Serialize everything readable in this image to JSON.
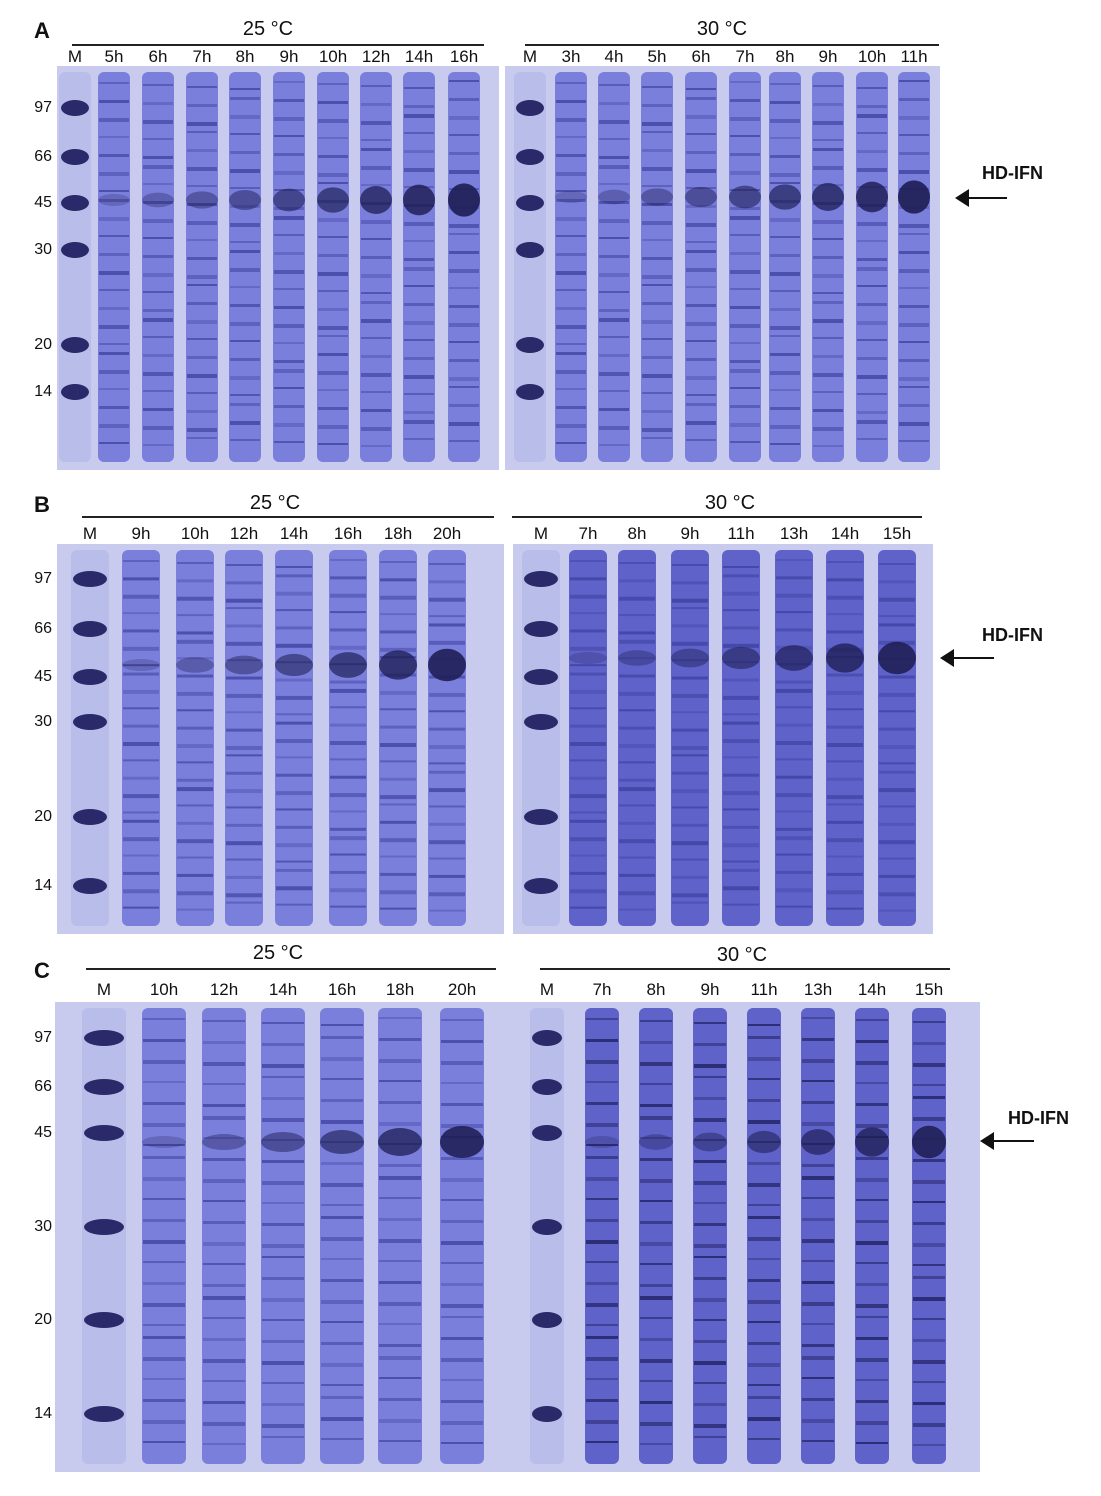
{
  "figure": {
    "label_HD": "HD-IFN",
    "panels": [
      {
        "letter": "A",
        "marker_weights": [
          "97",
          "66",
          "45",
          "30",
          "20",
          "14"
        ],
        "left": {
          "temp": "25 °C",
          "lanes": [
            "M",
            "5h",
            "6h",
            "7h",
            "8h",
            "9h",
            "10h",
            "12h",
            "14h",
            "16h"
          ]
        },
        "right": {
          "temp": "30 °C",
          "lanes": [
            "M",
            "3h",
            "4h",
            "5h",
            "6h",
            "7h",
            "8h",
            "9h",
            "10h",
            "11h"
          ]
        }
      },
      {
        "letter": "B",
        "marker_weights": [
          "97",
          "66",
          "45",
          "30",
          "20",
          "14"
        ],
        "left": {
          "temp": "25 °C",
          "lanes": [
            "M",
            "9h",
            "10h",
            "12h",
            "14h",
            "16h",
            "18h",
            "20h"
          ]
        },
        "right": {
          "temp": "30 °C",
          "lanes": [
            "M",
            "7h",
            "8h",
            "9h",
            "11h",
            "13h",
            "14h",
            "15h"
          ]
        }
      },
      {
        "letter": "C",
        "marker_weights": [
          "97",
          "66",
          "45",
          "30",
          "20",
          "14"
        ],
        "left": {
          "temp": "25 °C",
          "lanes": [
            "M",
            "10h",
            "12h",
            "14h",
            "16h",
            "18h",
            "20h"
          ]
        },
        "right": {
          "temp": "30 °C",
          "lanes": [
            "M",
            "7h",
            "8h",
            "9h",
            "11h",
            "13h",
            "14h",
            "15h"
          ]
        }
      }
    ]
  }
}
